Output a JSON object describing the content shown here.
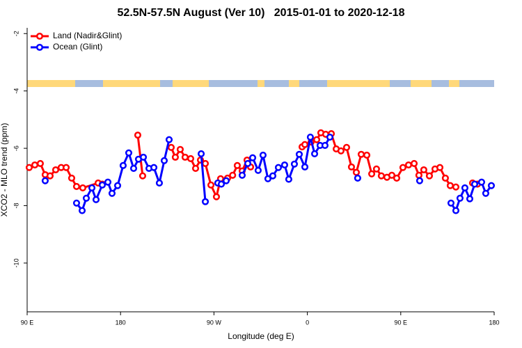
{
  "chart_data": {
    "type": "line",
    "title": "52.5N-57.5N August (Ver 10)   2015-01-01 to 2020-12-18",
    "x_label": "Longitude (deg E)",
    "y_label": "XCO2 - MLO trend (ppm)",
    "xlim": [
      90,
      540
    ],
    "ylim": [
      -11.7,
      -1.8
    ],
    "xticks": [
      {
        "value": 90,
        "label": "90 E"
      },
      {
        "value": 180,
        "label": "180"
      },
      {
        "value": 270,
        "label": "90 W"
      },
      {
        "value": 360,
        "label": "0"
      },
      {
        "value": 450,
        "label": "90 E"
      },
      {
        "value": 540,
        "label": "180"
      }
    ],
    "yticks": [
      -2,
      -4,
      -6,
      -8,
      -10
    ],
    "legend": "top-left",
    "series": [
      {
        "name": "Land (Nadir&Glint)",
        "color": "#ff0000",
        "x": [
          92.0,
          97.4,
          102.7,
          107.4,
          112.1,
          117.5,
          122.8,
          127.6,
          132.9,
          137.6,
          143.6,
          158.4,
          162.4,
          null,
          196.6,
          201.3,
          null,
          228.8,
          232.8,
          237.5,
          242.2,
          247.6,
          252.3,
          257.0,
          261.7,
          267.1,
          272.4,
          276.4,
          283.1,
          288.0,
          292.5,
          297.2,
          301.9,
          305.3,
          null,
          354.9,
          357.6,
          363.6,
          369.0,
          373.0,
          377.7,
          383.1,
          387.8,
          392.4,
          397.8,
          402.5,
          407.2,
          411.9,
          417.3,
          422.0,
          426.6,
          431.3,
          436.7,
          441.4,
          446.1,
          452.1,
          457.5,
          462.9,
          467.5,
          472.2,
          477.6,
          483.0,
          487.7,
          493.0,
          497.7,
          503.1,
          null,
          519.2,
          523.9
        ],
        "values": [
          -6.67,
          -6.58,
          -6.53,
          -6.92,
          -6.96,
          -6.75,
          -6.67,
          -6.67,
          -7.04,
          -7.33,
          -7.38,
          -7.21,
          -7.25,
          null,
          -5.54,
          -6.96,
          null,
          -5.97,
          -6.31,
          -6.04,
          -6.31,
          -6.36,
          -6.7,
          -6.41,
          -6.53,
          -7.28,
          -7.69,
          -7.06,
          -7.04,
          -6.94,
          -6.6,
          -6.79,
          -6.41,
          -6.65,
          null,
          -5.95,
          -5.87,
          -5.78,
          -5.7,
          -5.46,
          -5.51,
          -5.49,
          -6.02,
          -6.09,
          -5.97,
          -6.65,
          -6.84,
          -6.21,
          -6.24,
          -6.89,
          -6.72,
          -6.96,
          -7.01,
          -6.94,
          -7.04,
          -6.67,
          -6.58,
          -6.53,
          -6.94,
          -6.75,
          -6.96,
          -6.72,
          -6.67,
          -7.04,
          -7.3,
          -7.35,
          null,
          -7.21,
          -7.25
        ]
      },
      {
        "name": "Ocean (Glint)",
        "color": "#0000ff",
        "x": [
          107.4,
          null,
          137.6,
          143.0,
          147.0,
          152.4,
          156.4,
          162.4,
          167.8,
          171.8,
          177.2,
          182.5,
          187.9,
          192.6,
          197.3,
          202.0,
          207.4,
          212.1,
          217.4,
          222.1,
          226.8,
          null,
          257.7,
          261.7,
          null,
          273.7,
          277.1,
          281.8,
          null,
          297.2,
          302.6,
          307.3,
          312.6,
          317.3,
          322.0,
          326.7,
          332.1,
          338.1,
          342.1,
          347.5,
          352.2,
          357.6,
          362.9,
          367.0,
          372.3,
          377.0,
          381.7,
          null,
          408.5,
          null,
          468.2,
          null,
          498.4,
          503.1,
          507.1,
          511.8,
          516.5,
          521.2,
          527.9,
          531.9,
          537.3
        ],
        "values": [
          -7.13,
          null,
          -7.91,
          -8.17,
          -7.74,
          -7.38,
          -7.79,
          -7.28,
          -7.18,
          -7.57,
          -7.3,
          -6.6,
          -6.16,
          -6.7,
          -6.38,
          -6.31,
          -6.7,
          -6.67,
          -7.21,
          -6.43,
          -5.7,
          null,
          -6.19,
          -7.86,
          null,
          -7.21,
          -7.25,
          -7.13,
          null,
          -6.94,
          -6.53,
          -6.33,
          -6.77,
          -6.24,
          -7.06,
          -6.96,
          -6.67,
          -6.58,
          -7.08,
          -6.55,
          -6.21,
          -6.65,
          -5.61,
          -6.19,
          -5.9,
          -5.9,
          -5.61,
          null,
          -7.04,
          null,
          -7.13,
          null,
          -7.91,
          -8.17,
          -7.74,
          -7.38,
          -7.76,
          -7.25,
          -7.18,
          -7.57,
          -7.3
        ]
      }
    ]
  }
}
